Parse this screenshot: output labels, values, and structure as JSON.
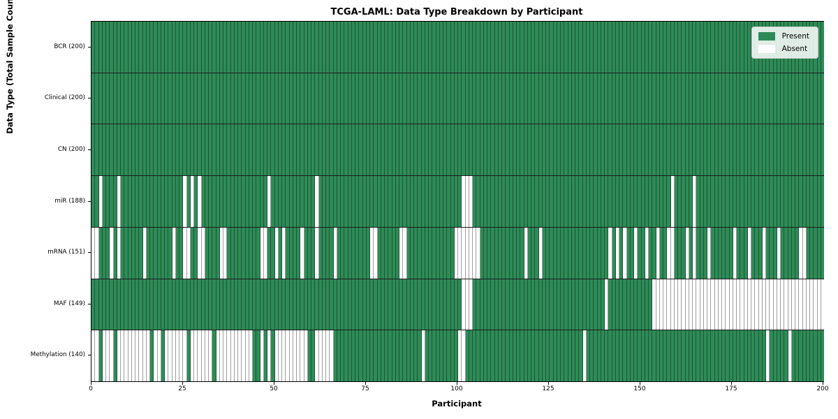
{
  "title": "TCGA-LAML: Data Type Breakdown by Participant",
  "xlabel": "Participant",
  "ylabel": "Data Type (Total Sample Count)",
  "legend": {
    "present_label": "Present",
    "absent_label": "Absent"
  },
  "colors": {
    "present": "#2e8b57",
    "absent": "#ffffff",
    "cell_grid": "rgba(0,0,0,0.38)",
    "row_separator": "#1c1c1c",
    "plot_border": "#000000",
    "legend_bg": "rgba(255,255,255,0.85)",
    "legend_border": "#cccccc"
  },
  "x_axis": {
    "min": 0,
    "max": 200,
    "ticks": [
      0,
      25,
      50,
      75,
      100,
      125,
      150,
      175,
      200
    ]
  },
  "chart_data": {
    "type": "heatmap",
    "n_participants": 200,
    "value_legend": {
      "present": 1,
      "absent": 0
    },
    "rows": [
      {
        "label": "BCR (200)",
        "name": "BCR",
        "total": 200,
        "absent": []
      },
      {
        "label": "Clinical (200)",
        "name": "Clinical",
        "total": 200,
        "absent": []
      },
      {
        "label": "CN (200)",
        "name": "CN",
        "total": 200,
        "absent": []
      },
      {
        "label": "miR (188)",
        "name": "miR",
        "total": 188,
        "absent": [
          2,
          7,
          25,
          27,
          29,
          48,
          61,
          101,
          102,
          103,
          158,
          164
        ]
      },
      {
        "label": "mRNA (151)",
        "name": "mRNA",
        "total": 151,
        "absent": [
          0,
          1,
          5,
          7,
          14,
          22,
          25,
          26,
          29,
          30,
          35,
          36,
          46,
          47,
          50,
          52,
          57,
          61,
          66,
          76,
          77,
          84,
          85,
          99,
          100,
          101,
          102,
          103,
          104,
          105,
          118,
          122,
          141,
          143,
          145,
          148,
          151,
          154,
          157,
          158,
          162,
          164,
          168,
          175,
          179,
          183,
          187,
          193,
          194
        ]
      },
      {
        "label": "MAF (149)",
        "name": "MAF",
        "total": 149,
        "absent": [
          101,
          102,
          103,
          140,
          153,
          154,
          155,
          156,
          157,
          158,
          159,
          160,
          161,
          162,
          163,
          164,
          165,
          166,
          167,
          168,
          169,
          170,
          171,
          172,
          173,
          174,
          175,
          176,
          177,
          178,
          179,
          180,
          181,
          182,
          183,
          184,
          185,
          186,
          187,
          188,
          189,
          190,
          191,
          192,
          193,
          194,
          195,
          196,
          197,
          198,
          199
        ]
      },
      {
        "label": "Methylation (140)",
        "name": "Methylation",
        "total": 140,
        "absent": [
          0,
          1,
          3,
          4,
          5,
          7,
          8,
          9,
          10,
          11,
          12,
          13,
          14,
          15,
          17,
          18,
          20,
          21,
          22,
          23,
          24,
          25,
          27,
          28,
          29,
          30,
          31,
          32,
          34,
          35,
          36,
          37,
          38,
          39,
          40,
          41,
          42,
          43,
          46,
          48,
          50,
          51,
          52,
          53,
          54,
          55,
          56,
          57,
          58,
          61,
          62,
          63,
          64,
          65,
          90,
          100,
          101,
          134,
          184,
          190
        ]
      }
    ]
  }
}
